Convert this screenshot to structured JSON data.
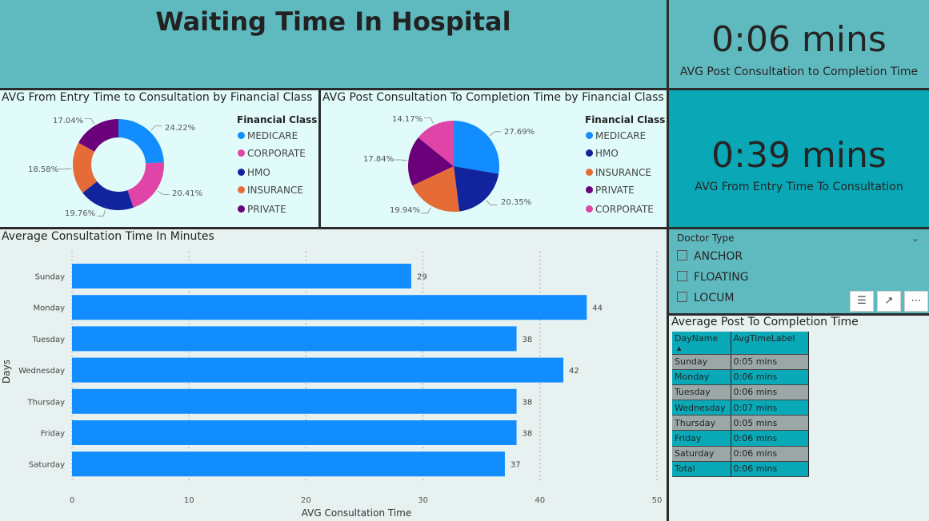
{
  "header": {
    "title": "Waiting Time In Hospital"
  },
  "kpis": {
    "post_consult": {
      "value": "0:06 mins",
      "label": "AVG Post Consultation to Completion Time"
    },
    "entry_consult": {
      "value": "0:39 mins",
      "label": "AVG From Entry Time To Consultation"
    }
  },
  "donut": {
    "title": "AVG From Entry Time to Consultation by Financial Class",
    "legend_title": "Financial Class",
    "legend": [
      "MEDICARE",
      "CORPORATE",
      "HMO",
      "INSURANCE",
      "PRIVATE"
    ],
    "slices": [
      {
        "name": "MEDICARE",
        "value": 24.22,
        "label": "24.22%",
        "color": "#118dff"
      },
      {
        "name": "CORPORATE",
        "value": 20.41,
        "label": "20.41%",
        "color": "#e044a7"
      },
      {
        "name": "HMO",
        "value": 19.76,
        "label": "19.76%",
        "color": "#12239e"
      },
      {
        "name": "INSURANCE",
        "value": 18.58,
        "label": "18.58%",
        "color": "#e66c37"
      },
      {
        "name": "PRIVATE",
        "value": 17.04,
        "label": "17.04%",
        "color": "#6b007b"
      }
    ]
  },
  "pie": {
    "title": "AVG Post Consultation To Completion Time by Financial Class",
    "legend_title": "Financial Class",
    "legend": [
      "MEDICARE",
      "HMO",
      "INSURANCE",
      "PRIVATE",
      "CORPORATE"
    ],
    "slices": [
      {
        "name": "MEDICARE",
        "value": 27.69,
        "label": "27.69%",
        "color": "#118dff"
      },
      {
        "name": "HMO",
        "value": 20.35,
        "label": "20.35%",
        "color": "#12239e"
      },
      {
        "name": "INSURANCE",
        "value": 19.94,
        "label": "19.94%",
        "color": "#e66c37"
      },
      {
        "name": "PRIVATE",
        "value": 17.84,
        "label": "17.84%",
        "color": "#6b007b"
      },
      {
        "name": "CORPORATE",
        "value": 14.17,
        "label": "14.17%",
        "color": "#e044a7"
      }
    ]
  },
  "colors": {
    "MEDICARE": "#118dff",
    "CORPORATE": "#e044a7",
    "HMO": "#12239e",
    "INSURANCE": "#e66c37",
    "PRIVATE": "#6b007b",
    "bar": "#118dff"
  },
  "chart_data": {
    "type": "bar",
    "orientation": "horizontal",
    "title": "Average Consultation Time In Minutes",
    "categories": [
      "Sunday",
      "Monday",
      "Tuesday",
      "Wednesday",
      "Thursday",
      "Friday",
      "Saturday"
    ],
    "values": [
      29,
      44,
      38,
      42,
      38,
      38,
      37
    ],
    "xlabel": "AVG Consultation Time",
    "ylabel": "Days",
    "xlim": [
      0,
      50
    ],
    "xticks": [
      0,
      10,
      20,
      30,
      40,
      50
    ],
    "grid": true
  },
  "slicer": {
    "title": "Doctor Type",
    "options": [
      "ANCHOR",
      "FLOATING",
      "LOCUM"
    ]
  },
  "post_table": {
    "title": "Average Post To Completion Time",
    "columns": [
      "DayName",
      "AvgTimeLabel"
    ],
    "rows": [
      [
        "Sunday",
        "0:05 mins"
      ],
      [
        "Monday",
        "0:06 mins"
      ],
      [
        "Tuesday",
        "0:06 mins"
      ],
      [
        "Wednesday",
        "0:07 mins"
      ],
      [
        "Thursday",
        "0:05 mins"
      ],
      [
        "Friday",
        "0:06 mins"
      ],
      [
        "Saturday",
        "0:06 mins"
      ]
    ],
    "total": [
      "Total",
      "0:06 mins"
    ]
  }
}
